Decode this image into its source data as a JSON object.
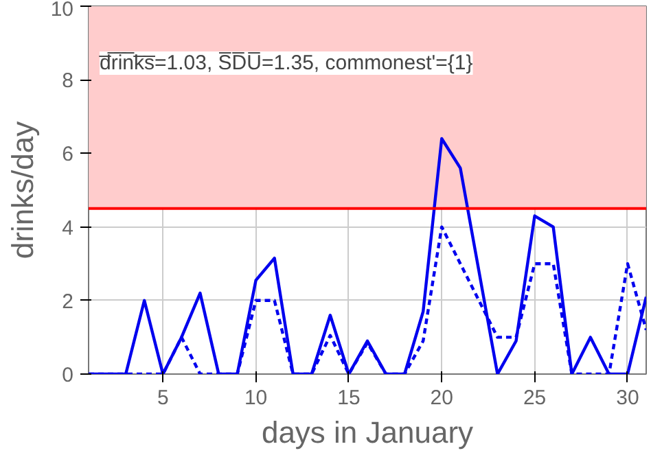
{
  "chart_data": {
    "type": "line",
    "xlabel": "days in January",
    "ylabel": "drinks/day",
    "x": [
      1,
      2,
      3,
      4,
      5,
      6,
      7,
      8,
      9,
      10,
      11,
      12,
      13,
      14,
      15,
      16,
      17,
      18,
      19,
      20,
      21,
      22,
      23,
      24,
      25,
      26,
      27,
      28,
      29,
      30,
      31
    ],
    "series": [
      {
        "color": "#0000ee",
        "line_style": "solid",
        "values": [
          0,
          0,
          0,
          2,
          0,
          1,
          2.2,
          0,
          0,
          2.55,
          3.15,
          0,
          0,
          1.6,
          0,
          0.9,
          0,
          0,
          1.7,
          6.4,
          5.6,
          2.8,
          0,
          0.9,
          4.3,
          4.0,
          0,
          1,
          0,
          0,
          2.1
        ]
      },
      {
        "color": "#0000ee",
        "line_style": "dashed",
        "values": [
          0,
          0,
          0,
          0,
          0,
          1,
          0,
          0,
          0,
          2,
          2,
          0,
          0,
          1.05,
          0,
          0.85,
          0,
          0,
          0.9,
          4,
          3,
          2,
          1,
          1,
          3,
          3,
          0,
          0,
          0,
          3,
          1.2
        ]
      }
    ],
    "xlim": [
      1,
      31
    ],
    "ylim": [
      0,
      10
    ],
    "xticks": [
      5,
      10,
      15,
      20,
      25,
      30
    ],
    "yticks": [
      0,
      2,
      4,
      6,
      8,
      10
    ],
    "grid": true,
    "ref_lines": [
      {
        "axis": "y",
        "value": 4.5,
        "color": "#ff0000"
      }
    ],
    "bands": [
      {
        "axis": "y",
        "from": 4.5,
        "to": 10,
        "color": "#ffcccc"
      }
    ],
    "annotations": [
      "d̅r̅i̅n̅k̅s̅=1.03, S̅D̅U̅=1.35, commonest'={1}"
    ]
  }
}
